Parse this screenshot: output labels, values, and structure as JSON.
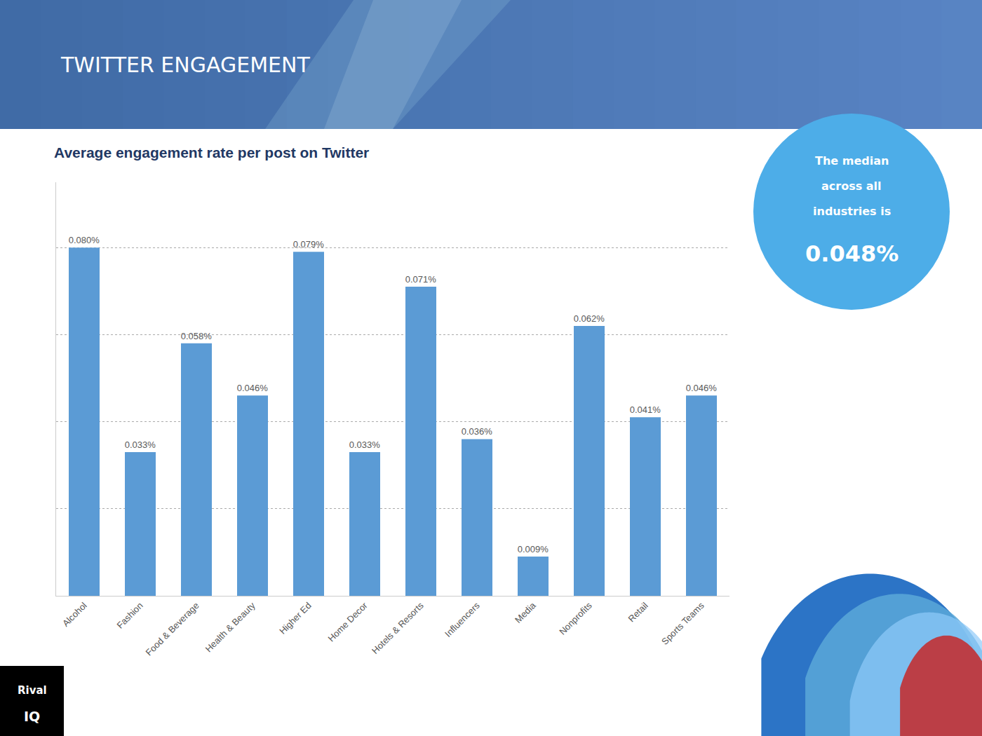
{
  "chart_data": {
    "type": "bar",
    "title": "Average engagement rate per post on Twitter",
    "categories": [
      "Alcohol",
      "Fashion",
      "Food & Beverage",
      "Health & Beauty",
      "Higher Ed",
      "Home Decor",
      "Hotels & Resorts",
      "Influencers",
      "Media",
      "Nonprofits",
      "Retail",
      "Sports Teams"
    ],
    "values": [
      0.0008,
      0.00033,
      0.00058,
      0.00046,
      0.00079,
      0.00033,
      0.00071,
      0.00036,
      9e-05,
      0.00062,
      0.00041,
      0.00046
    ],
    "value_labels": [
      "0.080%",
      "0.033%",
      "0.058%",
      "0.046%",
      "0.079%",
      "0.033%",
      "0.071%",
      "0.036%",
      "0.009%",
      "0.062%",
      "0.041%",
      "0.046%"
    ],
    "color": "#5B9BD5",
    "ylim": [
      0,
      0.00095
    ],
    "yticks": [
      0.0002,
      0.0004,
      0.0006,
      0.0008
    ],
    "grid": true,
    "data_labels": true,
    "tick_labels": "x",
    "annotations": [
      "TWITTER ENGAGEMENT",
      "The median",
      "across all",
      "industries is",
      "0.048%",
      "Rival",
      "IQ"
    ]
  }
}
